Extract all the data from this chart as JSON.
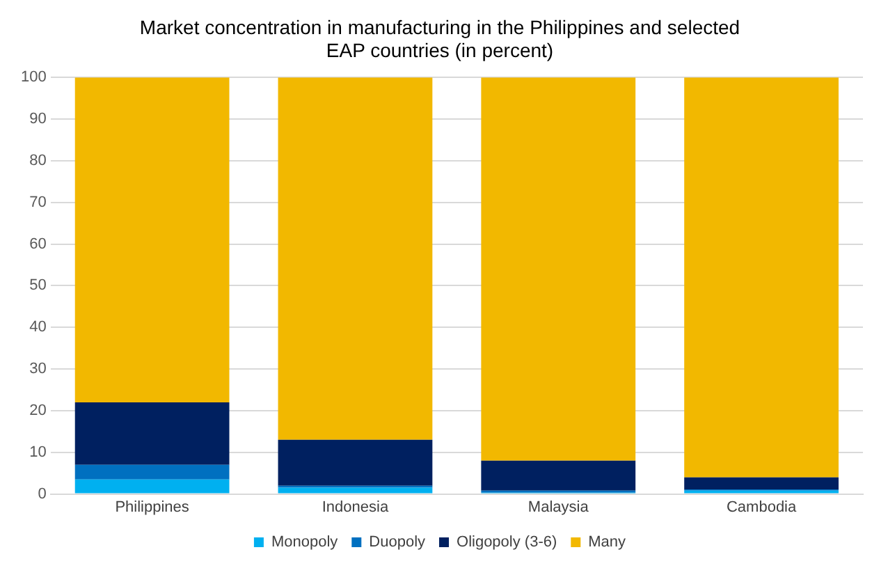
{
  "chart_data": {
    "type": "bar",
    "title": "Market concentration in manufacturing in the Philippines and selected EAP countries (in percent)",
    "categories": [
      "Philippines",
      "Indonesia",
      "Malaysia",
      "Cambodia"
    ],
    "stacked": true,
    "series": [
      {
        "name": "Monopoly",
        "color": "#00b0f0",
        "values": [
          3.5,
          1.5,
          0.3,
          0.8
        ]
      },
      {
        "name": "Duopoly",
        "color": "#0070c0",
        "values": [
          3.5,
          0.5,
          0.5,
          0.3
        ]
      },
      {
        "name": "Oligopoly (3-6)",
        "color": "#002060",
        "values": [
          15,
          11,
          7.2,
          2.9
        ]
      },
      {
        "name": "Many",
        "color": "#f2b800",
        "values": [
          78,
          87,
          92,
          96
        ]
      }
    ],
    "ylim": [
      0,
      100
    ],
    "yticks": [
      0,
      10,
      20,
      30,
      40,
      50,
      60,
      70,
      80,
      90,
      100
    ],
    "grid": "y",
    "legend": "bottom"
  }
}
